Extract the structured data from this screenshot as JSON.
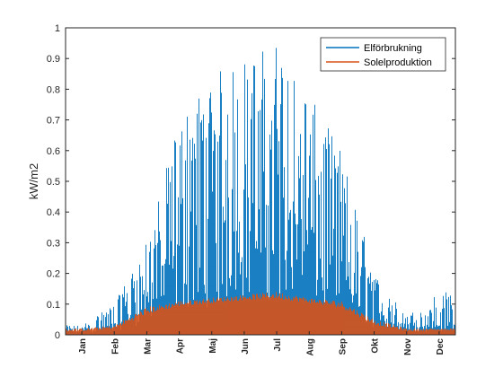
{
  "chart_data": {
    "type": "area",
    "title": "",
    "xlabel": "",
    "ylabel": "kW/m2",
    "ylim": [
      0,
      1
    ],
    "yticks": [
      "0",
      "0.1",
      "0.2",
      "0.3",
      "0.4",
      "0.5",
      "0.6",
      "0.7",
      "0.8",
      "0.9",
      "1"
    ],
    "categories": [
      "Jan",
      "Feb",
      "Mar",
      "Apr",
      "Maj",
      "Jun",
      "Jul",
      "Aug",
      "Sep",
      "Okt",
      "Nov",
      "Dec"
    ],
    "grid": false,
    "legend_position": "top-right",
    "series": [
      {
        "name": "Elförbrukning",
        "color": "#0072BD",
        "values": [
          0.03,
          0.1,
          0.3,
          0.7,
          0.85,
          0.9,
          0.96,
          0.78,
          0.6,
          0.2,
          0.06,
          0.14
        ],
        "typical_values": [
          0.01,
          0.03,
          0.12,
          0.25,
          0.3,
          0.35,
          0.38,
          0.3,
          0.2,
          0.07,
          0.02,
          0.03
        ]
      },
      {
        "name": "Solelproduktion",
        "color": "#D95319",
        "values": [
          0.02,
          0.03,
          0.09,
          0.11,
          0.12,
          0.13,
          0.14,
          0.12,
          0.11,
          0.05,
          0.02,
          0.02
        ],
        "typical_values": [
          0.005,
          0.01,
          0.05,
          0.08,
          0.09,
          0.1,
          0.1,
          0.09,
          0.07,
          0.02,
          0.005,
          0.01
        ]
      }
    ]
  }
}
